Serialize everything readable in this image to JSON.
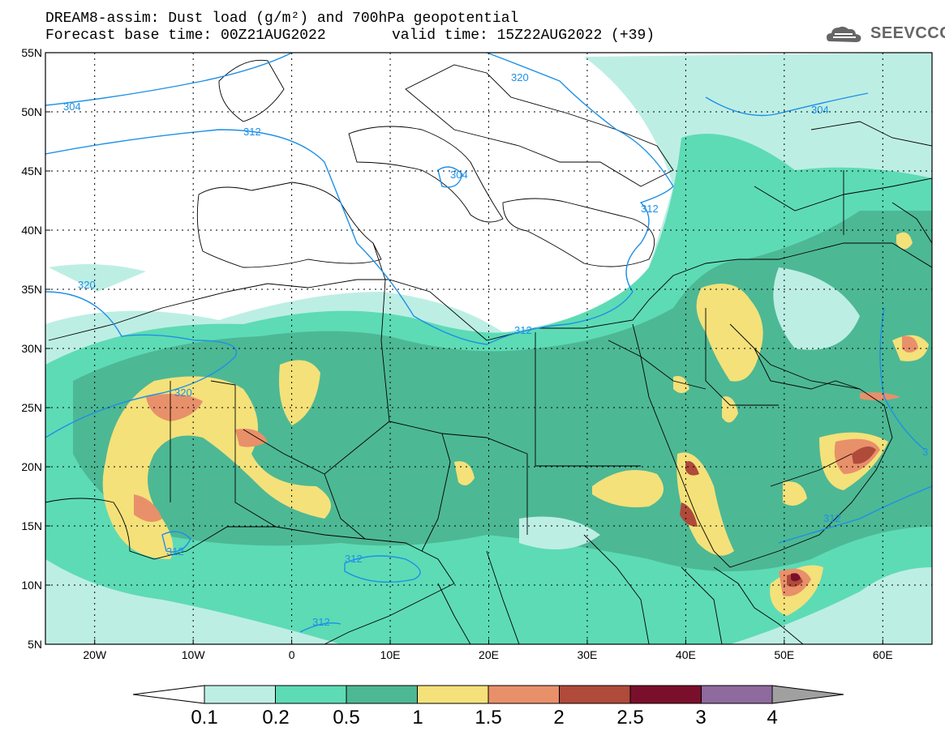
{
  "header": {
    "title_line1": "DREAM8-assim: Dust load (g/m²) and 700hPa geopotential",
    "base_time": "Forecast base time: 00Z21AUG2022",
    "valid_time": "valid time: 15Z22AUG2022 (+39)",
    "logo_text": "SEEVCCC"
  },
  "map": {
    "lat_labels": [
      "55N",
      "50N",
      "45N",
      "40N",
      "35N",
      "30N",
      "25N",
      "20N",
      "15N",
      "10N",
      "5N"
    ],
    "lon_labels": [
      "20W",
      "10W",
      "0",
      "10E",
      "20E",
      "30E",
      "40E",
      "50E",
      "60E"
    ],
    "contour_labels": [
      "304",
      "312",
      "320",
      "304",
      "312",
      "312",
      "320",
      "320",
      "312",
      "312",
      "312",
      "312",
      "304",
      "3"
    ]
  },
  "colorbar": {
    "labels": [
      "0.1",
      "0.2",
      "0.5",
      "1",
      "1.5",
      "2",
      "2.5",
      "3",
      "4"
    ],
    "colors": [
      "#ffffff",
      "#bdeee4",
      "#5ddbb5",
      "#4db894",
      "#f4e17a",
      "#e8906a",
      "#b04a3a",
      "#7a0f2c",
      "#8e6a9e",
      "#a0a0a0"
    ]
  }
}
